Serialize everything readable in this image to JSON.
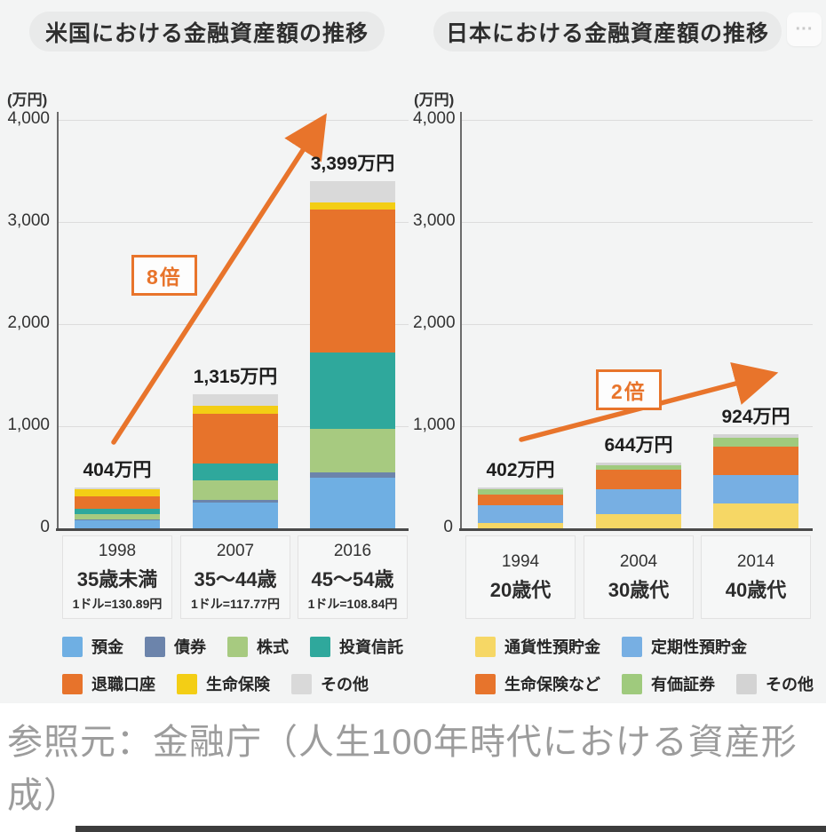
{
  "page": {
    "more_button_label": "···",
    "source_caption": "参照元：金融庁（人生100年時代における資産形成）"
  },
  "chart_data": [
    {
      "type": "bar",
      "stacked": true,
      "title": "米国における金融資産額の推移",
      "multiplier_note": "8倍",
      "y_axis": {
        "unit": "(万円)",
        "max": 4000,
        "ticks": [
          "4,000",
          "3,000",
          "2,000",
          "1,000",
          "0"
        ],
        "grid": true
      },
      "legend_position": "bottom",
      "series": [
        {
          "name": "預金",
          "color": "#6fafe3"
        },
        {
          "name": "債券",
          "color": "#6c84ab"
        },
        {
          "name": "株式",
          "color": "#a7ca80"
        },
        {
          "name": "投資信託",
          "color": "#2fa89c"
        },
        {
          "name": "退職口座",
          "color": "#e7732b"
        },
        {
          "name": "生命保険",
          "color": "#f3ce15"
        },
        {
          "name": "その他",
          "color": "#d9d9d9"
        }
      ],
      "legend_rows": [
        [
          0,
          1,
          2,
          3
        ],
        [
          4,
          5,
          6
        ]
      ],
      "bars": [
        {
          "label": "404万円",
          "total": 404,
          "year": "1998",
          "age_group": "35歳未満",
          "exchange_rate": "1ドル=130.89円",
          "values": [
            80,
            4,
            52,
            52,
            122,
            70,
            24
          ]
        },
        {
          "label": "1,315万円",
          "total": 1315,
          "year": "2007",
          "age_group": "35〜44歳",
          "exchange_rate": "1ドル=117.77円",
          "values": [
            255,
            26,
            191,
            165,
            487,
            78,
            113
          ]
        },
        {
          "label": "3,399万円",
          "total": 3399,
          "year": "2016",
          "age_group": "45〜54歳",
          "exchange_rate": "1ドル=108.84円",
          "values": [
            495,
            52,
            426,
            748,
            1400,
            70,
            208
          ]
        }
      ]
    },
    {
      "type": "bar",
      "stacked": true,
      "title": "日本における金融資産額の推移",
      "multiplier_note": "2倍",
      "y_axis": {
        "unit": "(万円)",
        "max": 4000,
        "ticks": [
          "4,000",
          "3,000",
          "2,000",
          "1,000",
          "0"
        ],
        "grid": true
      },
      "legend_position": "bottom",
      "series": [
        {
          "name": "通貨性預貯金",
          "color": "#f6d765"
        },
        {
          "name": "定期性預貯金",
          "color": "#77afe3"
        },
        {
          "name": "生命保険など",
          "color": "#e7742c"
        },
        {
          "name": "有価証券",
          "color": "#9fca7d"
        },
        {
          "name": "その他",
          "color": "#d3d3d3"
        }
      ],
      "legend_rows": [
        [
          0,
          1
        ],
        [
          2,
          3,
          4
        ]
      ],
      "bars": [
        {
          "label": "402万円",
          "total": 402,
          "year": "1994",
          "age_group": "20歳代",
          "values": [
            52,
            174,
            104,
            52,
            20
          ]
        },
        {
          "label": "644万円",
          "total": 644,
          "year": "2004",
          "age_group": "30歳代",
          "values": [
            139,
            243,
            191,
            45,
            26
          ]
        },
        {
          "label": "924万円",
          "total": 924,
          "year": "2014",
          "age_group": "40歳代",
          "values": [
            243,
            281,
            272,
            94,
            34
          ]
        }
      ]
    }
  ]
}
